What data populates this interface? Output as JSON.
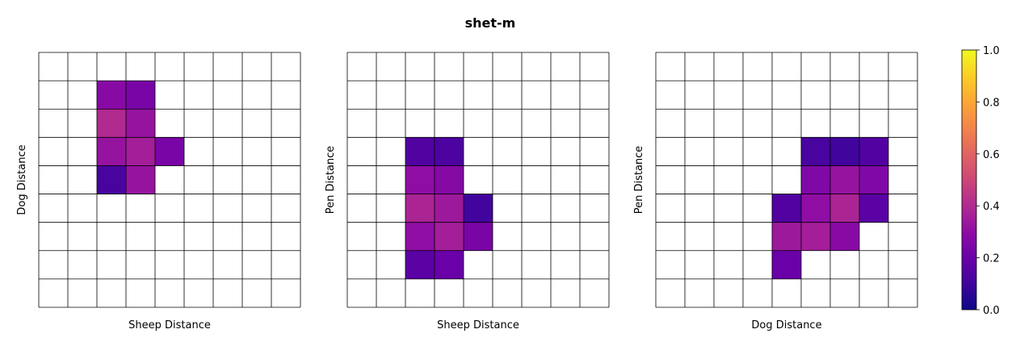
{
  "chart_data": {
    "type": "heatmap",
    "title": "shet-m",
    "colormap": "plasma",
    "colorbar": {
      "min": 0.0,
      "max": 1.0,
      "ticks": [
        "0.0",
        "0.2",
        "0.4",
        "0.6",
        "0.8",
        "1.0"
      ]
    },
    "grid": {
      "rows": 9,
      "cols": 9
    },
    "panels": [
      {
        "xlabel": "Sheep Distance",
        "ylabel": "Dog Distance",
        "cells": [
          {
            "row": 1,
            "col": 2,
            "value": 0.28
          },
          {
            "row": 1,
            "col": 3,
            "value": 0.24
          },
          {
            "row": 2,
            "col": 2,
            "value": 0.4
          },
          {
            "row": 2,
            "col": 3,
            "value": 0.32
          },
          {
            "row": 3,
            "col": 2,
            "value": 0.32
          },
          {
            "row": 3,
            "col": 3,
            "value": 0.36
          },
          {
            "row": 3,
            "col": 4,
            "value": 0.24
          },
          {
            "row": 4,
            "col": 2,
            "value": 0.12
          },
          {
            "row": 4,
            "col": 3,
            "value": 0.32
          }
        ]
      },
      {
        "xlabel": "Sheep Distance",
        "ylabel": "Pen Distance",
        "cells": [
          {
            "row": 3,
            "col": 2,
            "value": 0.14
          },
          {
            "row": 3,
            "col": 3,
            "value": 0.13
          },
          {
            "row": 4,
            "col": 2,
            "value": 0.3
          },
          {
            "row": 4,
            "col": 3,
            "value": 0.27
          },
          {
            "row": 5,
            "col": 2,
            "value": 0.38
          },
          {
            "row": 5,
            "col": 3,
            "value": 0.34
          },
          {
            "row": 5,
            "col": 4,
            "value": 0.1
          },
          {
            "row": 6,
            "col": 2,
            "value": 0.3
          },
          {
            "row": 6,
            "col": 3,
            "value": 0.36
          },
          {
            "row": 6,
            "col": 4,
            "value": 0.24
          },
          {
            "row": 7,
            "col": 2,
            "value": 0.16
          },
          {
            "row": 7,
            "col": 3,
            "value": 0.2
          }
        ]
      },
      {
        "xlabel": "Dog Distance",
        "ylabel": "Pen Distance",
        "cells": [
          {
            "row": 3,
            "col": 5,
            "value": 0.12
          },
          {
            "row": 3,
            "col": 6,
            "value": 0.1
          },
          {
            "row": 3,
            "col": 7,
            "value": 0.14
          },
          {
            "row": 4,
            "col": 5,
            "value": 0.26
          },
          {
            "row": 4,
            "col": 6,
            "value": 0.32
          },
          {
            "row": 4,
            "col": 7,
            "value": 0.26
          },
          {
            "row": 5,
            "col": 4,
            "value": 0.14
          },
          {
            "row": 5,
            "col": 5,
            "value": 0.3
          },
          {
            "row": 5,
            "col": 6,
            "value": 0.38
          },
          {
            "row": 5,
            "col": 7,
            "value": 0.16
          },
          {
            "row": 6,
            "col": 4,
            "value": 0.34
          },
          {
            "row": 6,
            "col": 5,
            "value": 0.36
          },
          {
            "row": 6,
            "col": 6,
            "value": 0.28
          },
          {
            "row": 7,
            "col": 4,
            "value": 0.2
          }
        ]
      }
    ]
  }
}
